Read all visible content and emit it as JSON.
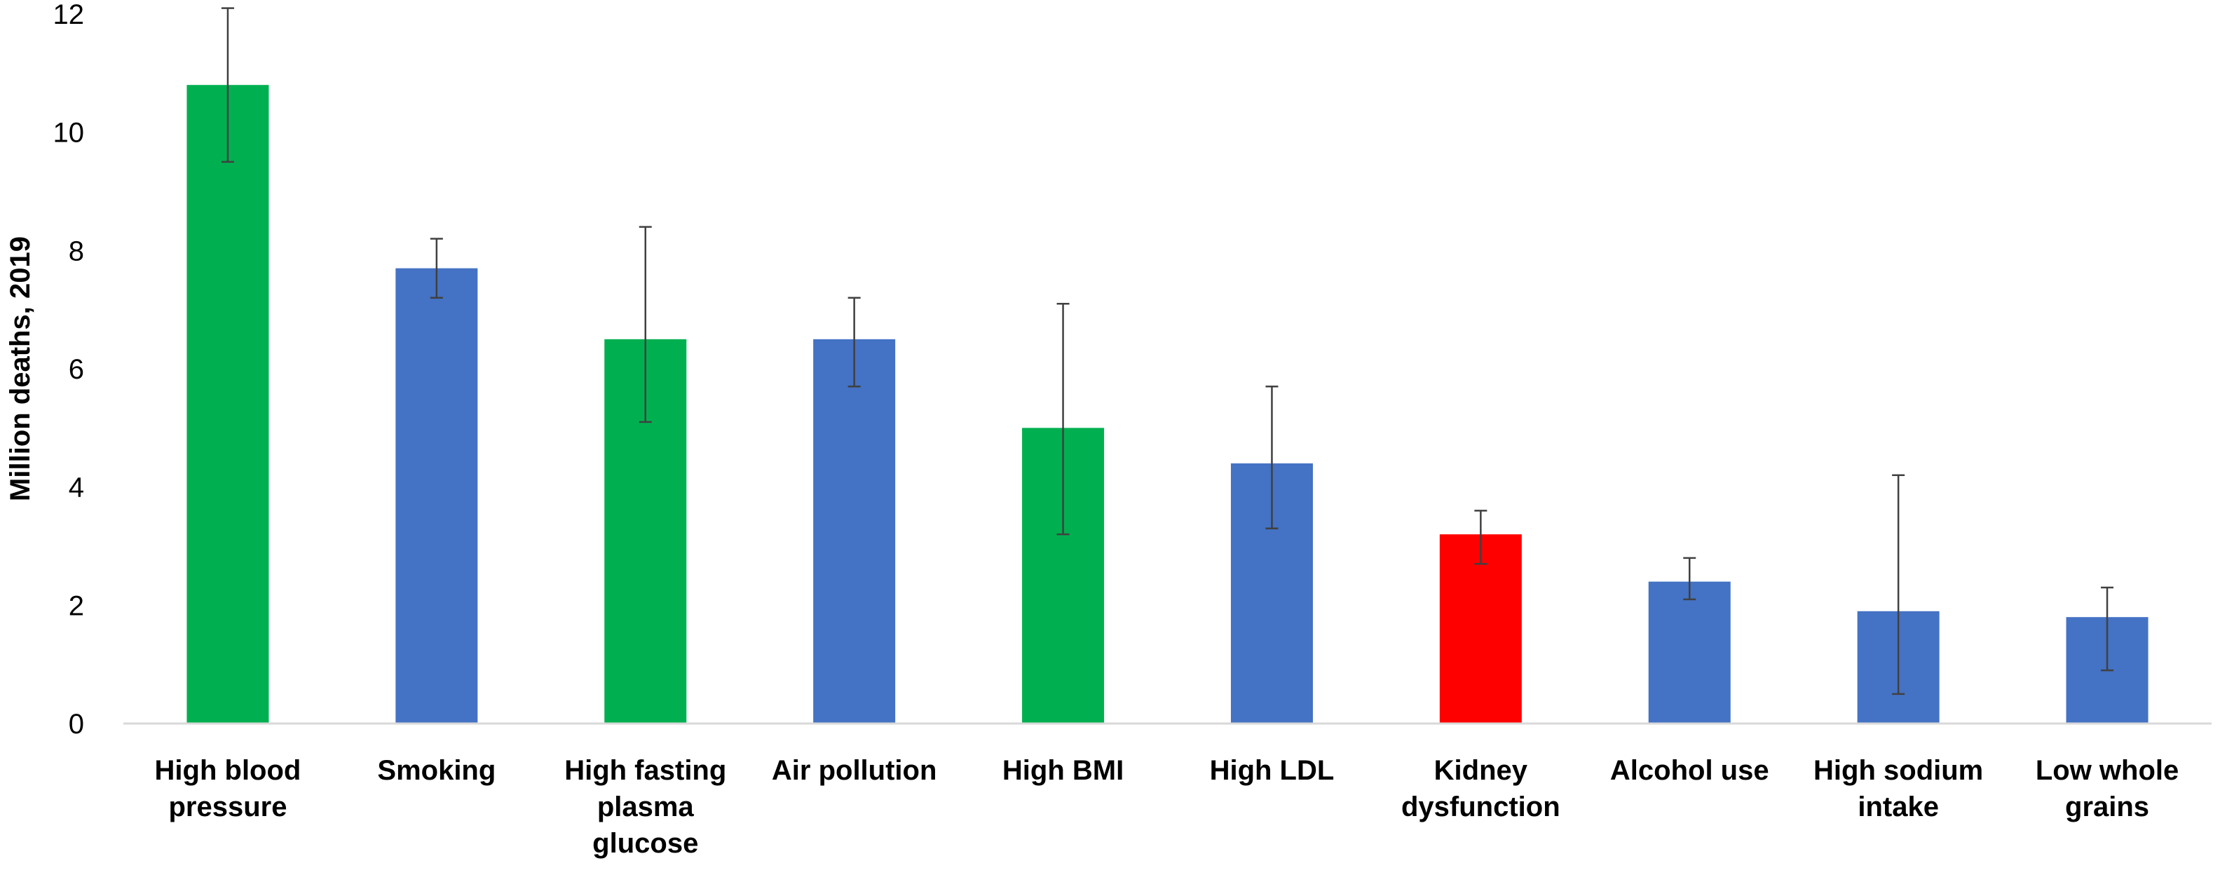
{
  "chart_data": {
    "type": "bar",
    "title": "",
    "xlabel": "",
    "ylabel": "Million deaths, 2019",
    "ylim": [
      0,
      12
    ],
    "yticks": [
      0,
      2,
      4,
      6,
      8,
      10,
      12
    ],
    "grid": false,
    "legend": "none",
    "categories": [
      [
        "High blood",
        "pressure"
      ],
      [
        "Smoking"
      ],
      [
        "High fasting",
        "plasma",
        "glucose"
      ],
      [
        "Air pollution"
      ],
      [
        "High BMI"
      ],
      [
        "High LDL"
      ],
      [
        "Kidney",
        "dysfunction"
      ],
      [
        "Alcohol use"
      ],
      [
        "High sodium",
        "intake"
      ],
      [
        "Low whole",
        "grains"
      ]
    ],
    "values": [
      10.8,
      7.7,
      6.5,
      6.5,
      5.0,
      4.4,
      3.2,
      2.4,
      1.9,
      1.8
    ],
    "error_low": [
      9.5,
      7.2,
      5.1,
      5.7,
      3.2,
      3.3,
      2.7,
      2.1,
      0.5,
      0.9
    ],
    "error_high": [
      12.1,
      8.2,
      8.4,
      7.2,
      7.1,
      5.7,
      3.6,
      2.8,
      4.2,
      2.3
    ],
    "bar_colors": [
      "#00b050",
      "#4472c4",
      "#00b050",
      "#4472c4",
      "#00b050",
      "#4472c4",
      "#ff0000",
      "#4472c4",
      "#4472c4",
      "#4472c4"
    ],
    "colors": {
      "green": "#00b050",
      "blue": "#4472c4",
      "red": "#ff0000",
      "error_bar": "#404040",
      "axis": "#d9d9d9"
    }
  }
}
